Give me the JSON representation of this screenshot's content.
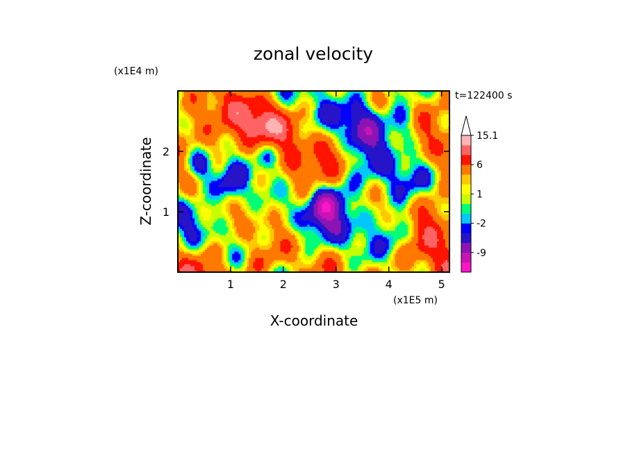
{
  "chart_data": {
    "type": "heatmap",
    "title": "zonal velocity",
    "time_label": "t=122400 s",
    "x_axis": {
      "label": "X-coordinate",
      "multiplier": "(x1E5 m)",
      "range": [
        0,
        5.15
      ],
      "ticks": [
        1,
        2,
        3,
        4,
        5
      ],
      "tick_labels": [
        "1",
        "2",
        "3",
        "4",
        "5"
      ]
    },
    "y_axis": {
      "label": "Z-coordinate",
      "multiplier": "(x1E4 m)",
      "range": [
        0,
        3.0
      ],
      "ticks": [
        1,
        2
      ],
      "tick_labels": [
        "1",
        "2"
      ]
    },
    "colorbar": {
      "levels": [
        -15,
        -12,
        -9,
        -6,
        -3,
        -2,
        -1,
        0,
        1,
        2,
        3,
        6,
        9,
        12,
        15.1
      ],
      "colors": [
        "#ff14c8",
        "#c814b4",
        "#8c14b4",
        "#2814c8",
        "#0000ff",
        "#00c8ff",
        "#00ff78",
        "#c8ff00",
        "#ffff00",
        "#ffc800",
        "#ff7800",
        "#ff1400",
        "#ff6464",
        "#ffb4b4"
      ],
      "extend_top_color": "#ffffff",
      "labels": [
        {
          "text": "15.1",
          "value": 15.1
        },
        {
          "text": "6",
          "value": 6
        },
        {
          "text": "1",
          "value": 1
        },
        {
          "text": "-2",
          "value": -2
        },
        {
          "text": "-9",
          "value": -9
        }
      ]
    },
    "grid": false
  }
}
